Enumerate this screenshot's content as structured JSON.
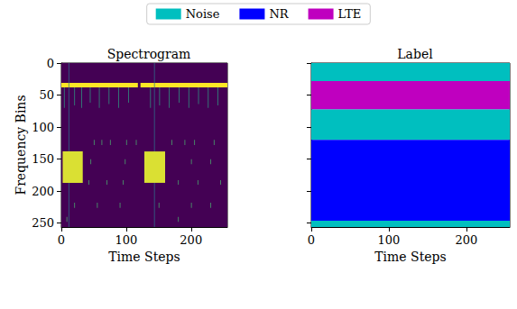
{
  "chart_data": [
    {
      "type": "heatmap",
      "title": "Spectrogram",
      "xlabel": "Time Steps",
      "ylabel": "Frequency Bins",
      "xlim": [
        0,
        256
      ],
      "ylim": [
        0,
        256
      ],
      "xticks": [
        0,
        100,
        200
      ],
      "yticks": [
        0,
        50,
        100,
        150,
        200,
        250
      ],
      "cells": [
        [
          0,
          256,
          0,
          256,
          0
        ],
        [
          0,
          118,
          31,
          38,
          0.9
        ],
        [
          122,
          256,
          31,
          38,
          0.9
        ],
        [
          4,
          5,
          38,
          70,
          0.5
        ],
        [
          20,
          21,
          38,
          66,
          0.5
        ],
        [
          31,
          32,
          38,
          70,
          0.5
        ],
        [
          44,
          45,
          38,
          62,
          0.5
        ],
        [
          58,
          59,
          38,
          70,
          0.5
        ],
        [
          73,
          74,
          38,
          64,
          0.5
        ],
        [
          88,
          89,
          38,
          70,
          0.5
        ],
        [
          103,
          104,
          38,
          62,
          0.5
        ],
        [
          137,
          138,
          38,
          70,
          0.5
        ],
        [
          151,
          152,
          38,
          66,
          0.5
        ],
        [
          166,
          167,
          38,
          70,
          0.5
        ],
        [
          181,
          182,
          38,
          62,
          0.5
        ],
        [
          196,
          197,
          38,
          70,
          0.5
        ],
        [
          211,
          212,
          38,
          64,
          0.5
        ],
        [
          226,
          227,
          38,
          70,
          0.5
        ],
        [
          241,
          242,
          38,
          66,
          0.5
        ],
        [
          11,
          12,
          0,
          256,
          0.35
        ],
        [
          143,
          144,
          0,
          256,
          0.35
        ],
        [
          2,
          33,
          138,
          187,
          0.85
        ],
        [
          128,
          160,
          138,
          187,
          0.85
        ],
        [
          50,
          51,
          120,
          128,
          0.6
        ],
        [
          62,
          63,
          120,
          128,
          0.6
        ],
        [
          75,
          76,
          120,
          128,
          0.6
        ],
        [
          100,
          101,
          120,
          128,
          0.6
        ],
        [
          115,
          116,
          120,
          128,
          0.6
        ],
        [
          170,
          171,
          120,
          128,
          0.6
        ],
        [
          190,
          191,
          120,
          128,
          0.6
        ],
        [
          205,
          206,
          120,
          128,
          0.6
        ],
        [
          235,
          236,
          120,
          128,
          0.6
        ],
        [
          45,
          46,
          150,
          158,
          0.6
        ],
        [
          98,
          99,
          150,
          158,
          0.6
        ],
        [
          200,
          201,
          150,
          158,
          0.6
        ],
        [
          230,
          231,
          150,
          158,
          0.6
        ],
        [
          42,
          43,
          183,
          190,
          0.6
        ],
        [
          70,
          71,
          183,
          190,
          0.6
        ],
        [
          95,
          96,
          183,
          190,
          0.6
        ],
        [
          180,
          181,
          183,
          190,
          0.6
        ],
        [
          210,
          211,
          183,
          190,
          0.6
        ],
        [
          245,
          246,
          183,
          190,
          0.6
        ],
        [
          20,
          21,
          218,
          226,
          0.6
        ],
        [
          55,
          56,
          218,
          226,
          0.6
        ],
        [
          90,
          91,
          218,
          226,
          0.6
        ],
        [
          150,
          151,
          218,
          226,
          0.6
        ],
        [
          200,
          201,
          218,
          226,
          0.6
        ],
        [
          230,
          231,
          218,
          226,
          0.6
        ],
        [
          8,
          9,
          240,
          248,
          0.6
        ],
        [
          180,
          181,
          240,
          248,
          0.6
        ]
      ]
    },
    {
      "type": "bands",
      "title": "Label",
      "xlabel": "Time Steps",
      "xlim": [
        0,
        256
      ],
      "ylim": [
        0,
        256
      ],
      "xticks": [
        0,
        100,
        200
      ],
      "yticks": [
        0,
        50,
        100,
        150,
        200,
        250
      ],
      "tick_labels": "x",
      "legend": "top",
      "series": [
        {
          "name": "Noise",
          "color": "#00bfbf",
          "values": [
            [
              0,
              28
            ],
            [
              72,
              120
            ],
            [
              246,
              256
            ]
          ]
        },
        {
          "name": "NR",
          "color": "#0000ff",
          "values": [
            [
              120,
              246
            ]
          ]
        },
        {
          "name": "LTE",
          "color": "#bf00bf",
          "values": [
            [
              28,
              72
            ]
          ]
        }
      ]
    }
  ]
}
